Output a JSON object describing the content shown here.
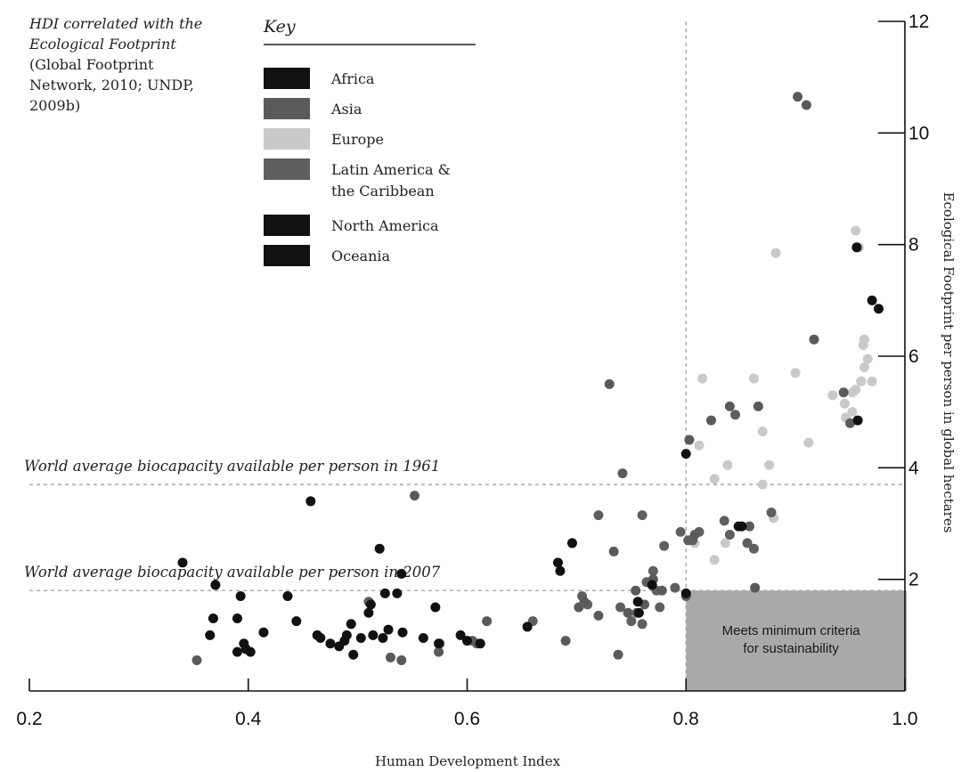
{
  "chart_data": {
    "type": "scatter",
    "source_note": {
      "title_line1": "HDI correlated with the",
      "title_line2": "Ecological Footprint",
      "line3": "(Global Footprint",
      "line4": "Network, 2010; UNDP,",
      "line5": "2009b)"
    },
    "key_title": "Key",
    "legend": [
      {
        "label": "Africa",
        "color": "#111111"
      },
      {
        "label": "Asia",
        "color": "#5a5a5a"
      },
      {
        "label": "Europe",
        "color": "#c9c9c9"
      },
      {
        "label": "Latin America &",
        "label2": "the Caribbean",
        "color": "#5f5f5f"
      },
      {
        "label": "North America",
        "color": "#111111"
      },
      {
        "label": "Oceania",
        "color": "#111111"
      }
    ],
    "xlabel": "Human Development Index",
    "ylabel": "Ecological Footprint per person in global hectares",
    "xlim": [
      0.2,
      1.0
    ],
    "ylim": [
      0,
      12
    ],
    "x_ticks": [
      {
        "value": 0.2,
        "label": "0.2"
      },
      {
        "value": 0.4,
        "label": "0.4"
      },
      {
        "value": 0.6,
        "label": "0.6"
      },
      {
        "value": 0.8,
        "label": "0.8"
      },
      {
        "value": 1.0,
        "label": "1.0"
      }
    ],
    "y_ticks": [
      {
        "value": 2,
        "label": "2"
      },
      {
        "value": 4,
        "label": "4"
      },
      {
        "value": 6,
        "label": "6"
      },
      {
        "value": 8,
        "label": "8"
      },
      {
        "value": 10,
        "label": "10"
      },
      {
        "value": 12,
        "label": "12"
      }
    ],
    "reference_lines": [
      {
        "axis": "y",
        "value": 3.7,
        "label": "World average biocapacity available per person in 1961"
      },
      {
        "axis": "y",
        "value": 1.8,
        "label": "World average biocapacity available per person in 2007"
      },
      {
        "axis": "x",
        "value": 0.8
      }
    ],
    "sustainability_box": {
      "label_line1": "Meets minimum criteria",
      "label_line2": "for sustainability",
      "x_range": [
        0.8,
        1.0
      ],
      "y_range": [
        0,
        1.8
      ]
    },
    "series": [
      {
        "name": "Africa",
        "color": "#111111",
        "points": [
          [
            0.34,
            2.3
          ],
          [
            0.365,
            1.0
          ],
          [
            0.368,
            1.3
          ],
          [
            0.37,
            1.9
          ],
          [
            0.39,
            0.7
          ],
          [
            0.39,
            1.3
          ],
          [
            0.393,
            1.7
          ],
          [
            0.396,
            0.85
          ],
          [
            0.398,
            0.75
          ],
          [
            0.402,
            0.7
          ],
          [
            0.414,
            1.05
          ],
          [
            0.436,
            1.7
          ],
          [
            0.444,
            1.25
          ],
          [
            0.457,
            3.4
          ],
          [
            0.463,
            1.0
          ],
          [
            0.466,
            0.95
          ],
          [
            0.475,
            0.85
          ],
          [
            0.483,
            0.8
          ],
          [
            0.488,
            0.9
          ],
          [
            0.49,
            1.0
          ],
          [
            0.494,
            1.2
          ],
          [
            0.496,
            0.65
          ],
          [
            0.503,
            0.95
          ],
          [
            0.51,
            1.4
          ],
          [
            0.512,
            1.55
          ],
          [
            0.514,
            1.0
          ],
          [
            0.52,
            2.55
          ],
          [
            0.523,
            0.95
          ],
          [
            0.525,
            1.75
          ],
          [
            0.528,
            1.1
          ],
          [
            0.536,
            1.75
          ],
          [
            0.54,
            2.1
          ],
          [
            0.541,
            1.05
          ],
          [
            0.56,
            0.95
          ],
          [
            0.571,
            1.5
          ],
          [
            0.574,
            0.85
          ],
          [
            0.594,
            1.0
          ],
          [
            0.6,
            0.9
          ],
          [
            0.612,
            0.85
          ],
          [
            0.655,
            1.15
          ],
          [
            0.683,
            2.3
          ],
          [
            0.685,
            2.15
          ],
          [
            0.696,
            2.65
          ],
          [
            0.756,
            1.6
          ],
          [
            0.757,
            1.4
          ],
          [
            0.769,
            1.9
          ],
          [
            0.8,
            4.25
          ],
          [
            0.8,
            1.75
          ],
          [
            0.848,
            2.95
          ]
        ]
      },
      {
        "name": "Asia",
        "color": "#5a5a5a",
        "points": [
          [
            0.353,
            0.55
          ],
          [
            0.53,
            0.6
          ],
          [
            0.54,
            0.55
          ],
          [
            0.552,
            3.5
          ],
          [
            0.574,
            0.7
          ],
          [
            0.609,
            0.85
          ],
          [
            0.618,
            1.25
          ],
          [
            0.69,
            0.9
          ],
          [
            0.702,
            1.5
          ],
          [
            0.707,
            1.6
          ],
          [
            0.72,
            1.35
          ],
          [
            0.73,
            5.5
          ],
          [
            0.734,
            2.5
          ],
          [
            0.738,
            0.65
          ],
          [
            0.742,
            3.9
          ],
          [
            0.747,
            1.4
          ],
          [
            0.754,
            1.8
          ],
          [
            0.762,
            1.55
          ],
          [
            0.77,
            2.0
          ],
          [
            0.778,
            1.8
          ],
          [
            0.803,
            4.5
          ],
          [
            0.808,
            2.8
          ],
          [
            0.823,
            4.85
          ],
          [
            0.84,
            5.1
          ],
          [
            0.858,
            2.95
          ],
          [
            0.863,
            1.85
          ],
          [
            0.866,
            5.1
          ],
          [
            0.902,
            10.65
          ],
          [
            0.91,
            10.5
          ],
          [
            0.917,
            6.3
          ],
          [
            0.944,
            5.35
          ],
          [
            0.95,
            4.8
          ]
        ]
      },
      {
        "name": "Europe",
        "color": "#c9c9c9",
        "points": [
          [
            0.808,
            2.65
          ],
          [
            0.812,
            4.4
          ],
          [
            0.815,
            5.6
          ],
          [
            0.826,
            2.35
          ],
          [
            0.826,
            3.8
          ],
          [
            0.836,
            2.65
          ],
          [
            0.838,
            4.05
          ],
          [
            0.862,
            5.6
          ],
          [
            0.87,
            4.65
          ],
          [
            0.87,
            3.7
          ],
          [
            0.876,
            4.05
          ],
          [
            0.88,
            3.1
          ],
          [
            0.882,
            7.85
          ],
          [
            0.9,
            5.7
          ],
          [
            0.912,
            4.45
          ],
          [
            0.934,
            5.3
          ],
          [
            0.945,
            5.15
          ],
          [
            0.946,
            4.9
          ],
          [
            0.952,
            5.35
          ],
          [
            0.952,
            5.0
          ],
          [
            0.955,
            8.25
          ],
          [
            0.958,
            7.95
          ],
          [
            0.96,
            5.55
          ],
          [
            0.962,
            6.2
          ],
          [
            0.963,
            5.8
          ],
          [
            0.963,
            6.3
          ],
          [
            0.966,
            5.95
          ],
          [
            0.97,
            5.55
          ],
          [
            0.955,
            5.4
          ]
        ]
      },
      {
        "name": "Latin America & the Caribbean",
        "color": "#5f5f5f",
        "points": [
          [
            0.51,
            1.6
          ],
          [
            0.575,
            0.85
          ],
          [
            0.605,
            0.9
          ],
          [
            0.66,
            1.25
          ],
          [
            0.705,
            1.7
          ],
          [
            0.71,
            1.55
          ],
          [
            0.74,
            1.5
          ],
          [
            0.75,
            1.25
          ],
          [
            0.755,
            1.4
          ],
          [
            0.76,
            1.2
          ],
          [
            0.764,
            1.95
          ],
          [
            0.77,
            2.15
          ],
          [
            0.773,
            1.8
          ],
          [
            0.776,
            1.5
          ],
          [
            0.78,
            2.6
          ],
          [
            0.79,
            1.85
          ],
          [
            0.795,
            2.85
          ],
          [
            0.8,
            1.7
          ],
          [
            0.806,
            2.7
          ],
          [
            0.812,
            2.85
          ],
          [
            0.835,
            3.05
          ],
          [
            0.84,
            2.8
          ],
          [
            0.845,
            4.95
          ],
          [
            0.856,
            2.65
          ],
          [
            0.862,
            2.55
          ],
          [
            0.878,
            3.2
          ],
          [
            0.802,
            2.7
          ],
          [
            0.72,
            3.15
          ],
          [
            0.76,
            3.15
          ]
        ]
      },
      {
        "name": "North America",
        "color": "#111111",
        "points": [
          [
            0.956,
            7.95
          ],
          [
            0.97,
            7.0
          ]
        ]
      },
      {
        "name": "Oceania",
        "color": "#111111",
        "points": [
          [
            0.976,
            6.85
          ],
          [
            0.957,
            4.85
          ],
          [
            0.851,
            2.95
          ]
        ]
      }
    ]
  }
}
